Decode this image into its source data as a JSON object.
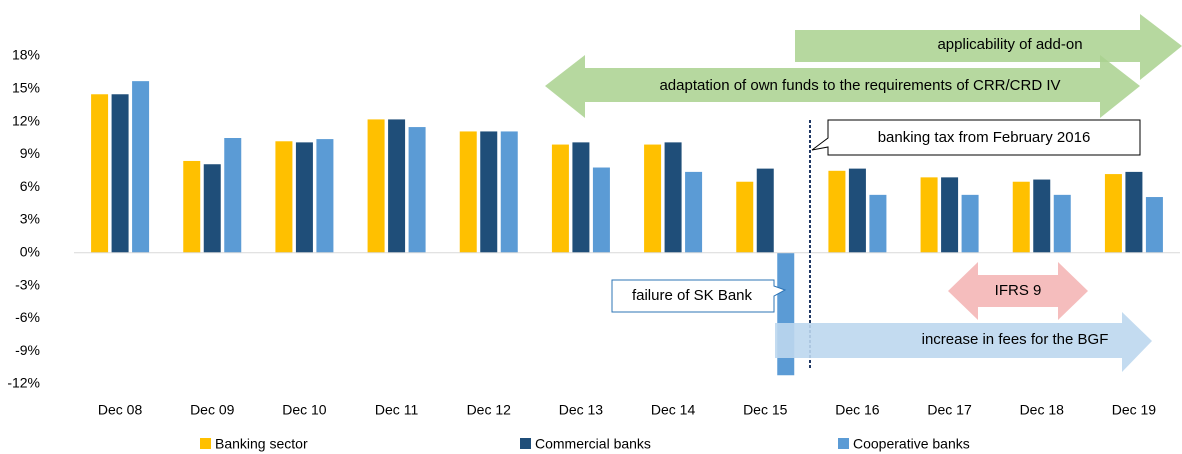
{
  "chart_data": {
    "type": "bar",
    "categories": [
      "Dec 08",
      "Dec 09",
      "Dec 10",
      "Dec 11",
      "Dec 12",
      "Dec 13",
      "Dec 14",
      "Dec 15",
      "Dec 16",
      "Dec 17",
      "Dec 18",
      "Dec 19"
    ],
    "series": [
      {
        "name": "Banking sector",
        "color": "#ffc000",
        "values": [
          14.5,
          8.4,
          10.2,
          12.2,
          11.1,
          9.9,
          9.9,
          6.5,
          7.5,
          6.9,
          6.5,
          7.2
        ]
      },
      {
        "name": "Commercial banks",
        "color": "#1f4e79",
        "values": [
          14.5,
          8.1,
          10.1,
          12.2,
          11.1,
          10.1,
          10.1,
          7.7,
          7.7,
          6.9,
          6.7,
          7.4
        ]
      },
      {
        "name": "Cooperative banks",
        "color": "#5b9bd5",
        "values": [
          15.7,
          10.5,
          10.4,
          11.5,
          11.1,
          7.8,
          7.4,
          -11.2,
          5.3,
          5.3,
          5.3,
          5.1
        ]
      }
    ],
    "ylim": [
      -12,
      18
    ],
    "yticks": [
      {
        "value": -12,
        "label": "-12%"
      },
      {
        "value": -9,
        "label": "-9%"
      },
      {
        "value": -6,
        "label": "-6%"
      },
      {
        "value": -3,
        "label": "-3%"
      },
      {
        "value": 0,
        "label": "0%"
      },
      {
        "value": 3,
        "label": "3%"
      },
      {
        "value": 6,
        "label": "6%"
      },
      {
        "value": 9,
        "label": "9%"
      },
      {
        "value": 12,
        "label": "12%"
      },
      {
        "value": 15,
        "label": "15%"
      },
      {
        "value": 18,
        "label": "18%"
      }
    ],
    "grid": false,
    "legend": "bottom",
    "annotations": [
      "applicability of  add-on",
      "adaptation of own funds to the requirements of CRR/CRD IV",
      "banking tax from February 2016",
      "failure of SK Bank",
      "IFRS 9",
      "increase in fees for the BGF"
    ]
  }
}
